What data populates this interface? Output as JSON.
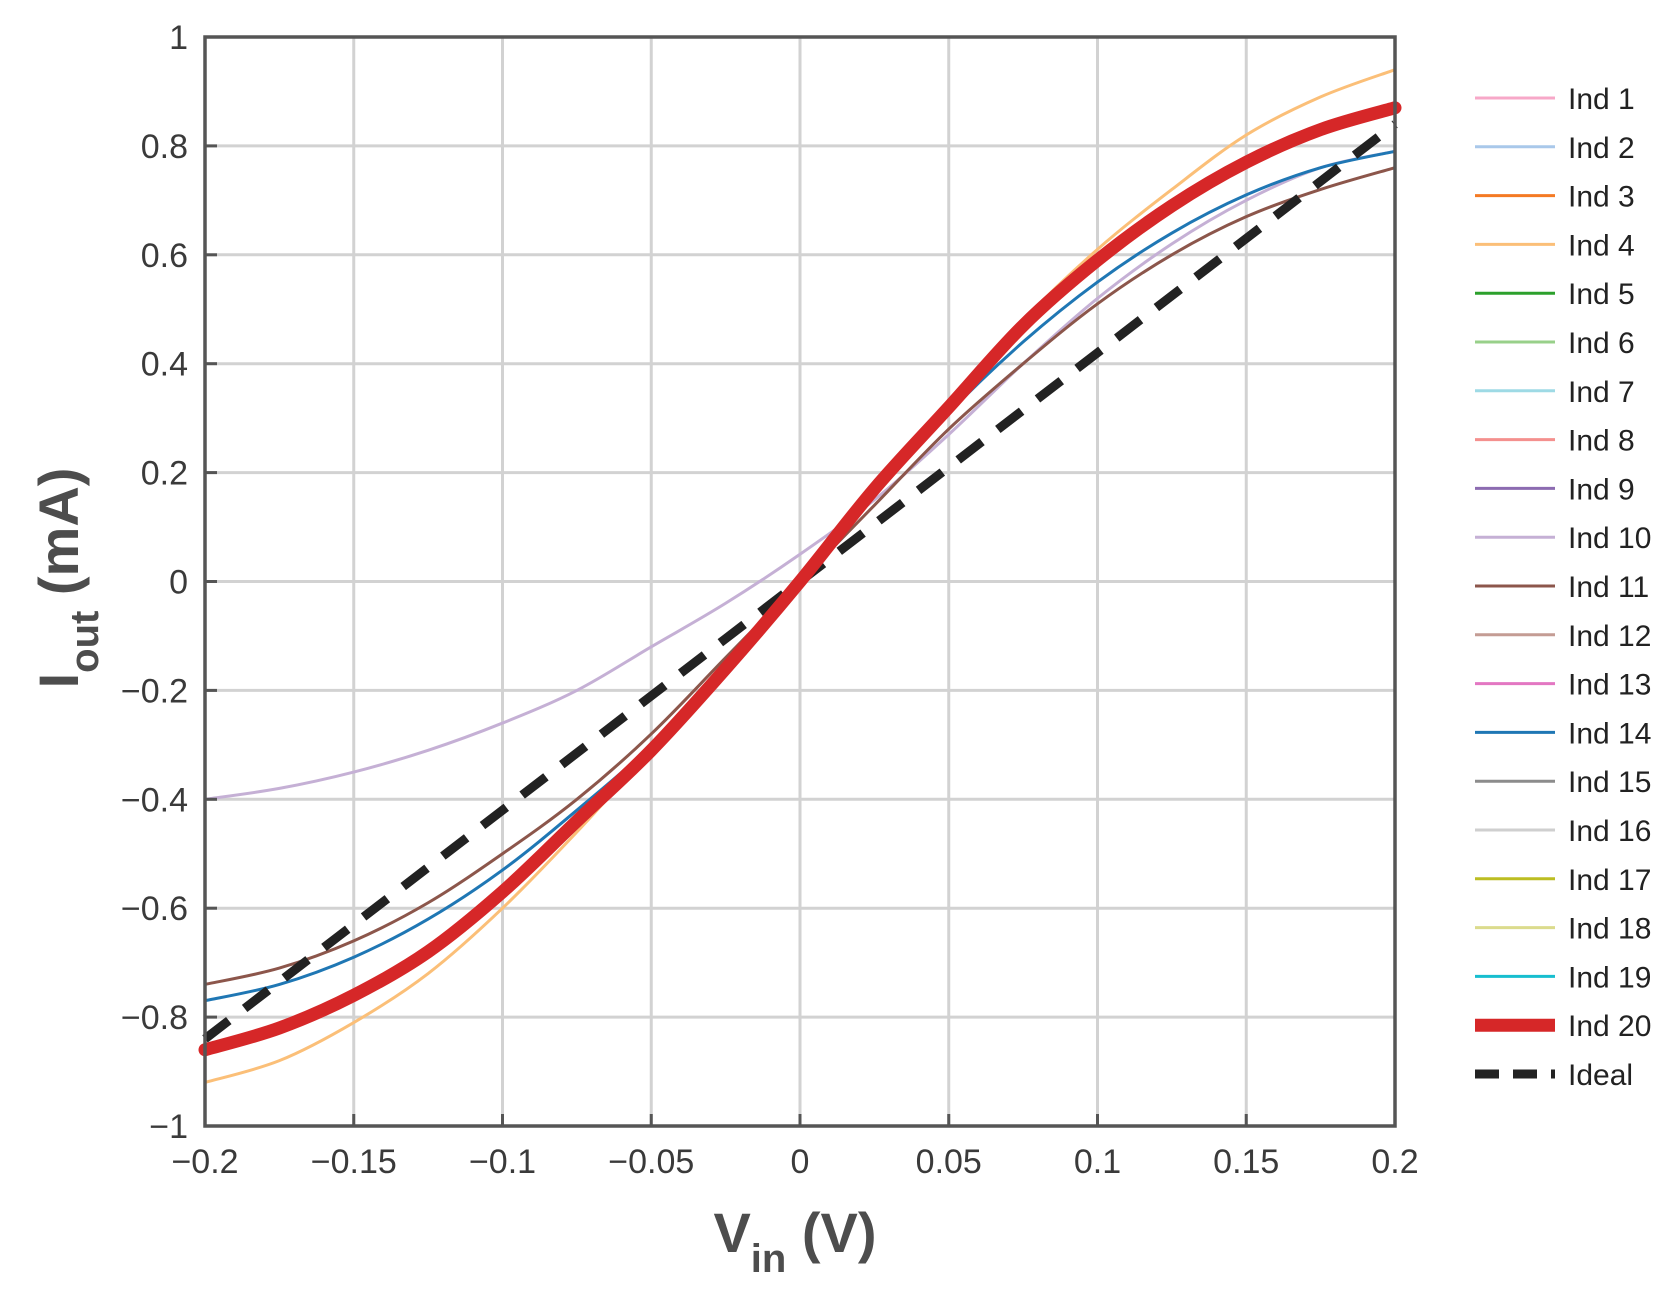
{
  "chart_data": {
    "type": "line",
    "xlabel": {
      "main": "V",
      "sub": "in",
      "rest": " (V)"
    },
    "ylabel": {
      "main": "I",
      "sub": "out",
      "rest": " (mA)"
    },
    "xlim": [
      -0.2,
      0.2
    ],
    "ylim": [
      -1,
      1
    ],
    "grid": true,
    "legend_position": "right-outside",
    "x_ticks": [
      {
        "value": -0.2,
        "label": "−0.2"
      },
      {
        "value": -0.15,
        "label": "−0.15"
      },
      {
        "value": -0.1,
        "label": "−0.1"
      },
      {
        "value": -0.05,
        "label": "−0.05"
      },
      {
        "value": 0,
        "label": "0"
      },
      {
        "value": 0.05,
        "label": "0.05"
      },
      {
        "value": 0.1,
        "label": "0.1"
      },
      {
        "value": 0.15,
        "label": "0.15"
      },
      {
        "value": 0.2,
        "label": "0.2"
      }
    ],
    "y_ticks": [
      {
        "value": 1,
        "label": "1"
      },
      {
        "value": 0.8,
        "label": "0.8"
      },
      {
        "value": 0.6,
        "label": "0.6"
      },
      {
        "value": 0.4,
        "label": "0.4"
      },
      {
        "value": 0.2,
        "label": "0.2"
      },
      {
        "value": 0,
        "label": "0"
      },
      {
        "value": -0.2,
        "label": "−0.2"
      },
      {
        "value": -0.4,
        "label": "−0.4"
      },
      {
        "value": -0.6,
        "label": "−0.6"
      },
      {
        "value": -0.8,
        "label": "−0.8"
      },
      {
        "value": -1,
        "label": "−1"
      }
    ],
    "series": [
      {
        "name": "Ind 1",
        "color": "#f7a8c8",
        "width": 3,
        "dash": false,
        "x": [],
        "y": []
      },
      {
        "name": "Ind 2",
        "color": "#a9c8ea",
        "width": 3,
        "dash": false,
        "x": [],
        "y": []
      },
      {
        "name": "Ind 3",
        "color": "#f47a24",
        "width": 3,
        "dash": false,
        "x": [],
        "y": []
      },
      {
        "name": "Ind 4",
        "color": "#fbbf78",
        "width": 3,
        "dash": false,
        "x": [
          -0.2,
          -0.175,
          -0.15,
          -0.125,
          -0.1,
          -0.075,
          -0.05,
          -0.025,
          0,
          0.025,
          0.05,
          0.075,
          0.1,
          0.125,
          0.15,
          0.175,
          0.2
        ],
        "y": [
          -0.92,
          -0.88,
          -0.81,
          -0.72,
          -0.6,
          -0.46,
          -0.31,
          -0.16,
          0.0,
          0.17,
          0.33,
          0.48,
          0.61,
          0.72,
          0.82,
          0.89,
          0.94
        ]
      },
      {
        "name": "Ind 5",
        "color": "#2ca02c",
        "width": 3,
        "dash": false,
        "x": [],
        "y": []
      },
      {
        "name": "Ind 6",
        "color": "#98d08a",
        "width": 3,
        "dash": false,
        "x": [],
        "y": []
      },
      {
        "name": "Ind 7",
        "color": "#9edae5",
        "width": 3,
        "dash": false,
        "x": [],
        "y": []
      },
      {
        "name": "Ind 8",
        "color": "#f4908e",
        "width": 3,
        "dash": false,
        "x": [],
        "y": []
      },
      {
        "name": "Ind 9",
        "color": "#8c6bb1",
        "width": 3,
        "dash": false,
        "x": [],
        "y": []
      },
      {
        "name": "Ind 10",
        "color": "#c5b0d5",
        "width": 3,
        "dash": false,
        "x": [
          -0.2,
          -0.175,
          -0.15,
          -0.125,
          -0.1,
          -0.075,
          -0.05,
          -0.025,
          0,
          0.025,
          0.05,
          0.075,
          0.1,
          0.125,
          0.15,
          0.175,
          0.2
        ],
        "y": [
          -0.4,
          -0.38,
          -0.35,
          -0.31,
          -0.26,
          -0.2,
          -0.12,
          -0.04,
          0.05,
          0.15,
          0.27,
          0.4,
          0.52,
          0.62,
          0.7,
          0.76,
          0.79
        ]
      },
      {
        "name": "Ind 11",
        "color": "#8c564b",
        "width": 3,
        "dash": false,
        "x": [
          -0.2,
          -0.175,
          -0.15,
          -0.125,
          -0.1,
          -0.075,
          -0.05,
          -0.025,
          0,
          0.025,
          0.05,
          0.075,
          0.1,
          0.125,
          0.15,
          0.175,
          0.2
        ],
        "y": [
          -0.74,
          -0.71,
          -0.66,
          -0.59,
          -0.5,
          -0.4,
          -0.28,
          -0.14,
          0.0,
          0.14,
          0.28,
          0.4,
          0.51,
          0.6,
          0.67,
          0.72,
          0.76
        ]
      },
      {
        "name": "Ind 12",
        "color": "#c49c94",
        "width": 3,
        "dash": false,
        "x": [],
        "y": []
      },
      {
        "name": "Ind 13",
        "color": "#e377c2",
        "width": 3,
        "dash": false,
        "x": [],
        "y": []
      },
      {
        "name": "Ind 14",
        "color": "#1f77b4",
        "width": 3,
        "dash": false,
        "x": [
          -0.2,
          -0.175,
          -0.15,
          -0.125,
          -0.1,
          -0.075,
          -0.05,
          -0.025,
          0,
          0.025,
          0.05,
          0.075,
          0.1,
          0.125,
          0.15,
          0.175,
          0.2
        ],
        "y": [
          -0.77,
          -0.74,
          -0.69,
          -0.62,
          -0.53,
          -0.42,
          -0.3,
          -0.15,
          0.0,
          0.16,
          0.31,
          0.44,
          0.55,
          0.64,
          0.71,
          0.76,
          0.79
        ]
      },
      {
        "name": "Ind 15",
        "color": "#8c8c8c",
        "width": 3,
        "dash": false,
        "x": [],
        "y": []
      },
      {
        "name": "Ind 16",
        "color": "#cfcfcf",
        "width": 3,
        "dash": false,
        "x": [],
        "y": []
      },
      {
        "name": "Ind 17",
        "color": "#bcbd22",
        "width": 3,
        "dash": false,
        "x": [],
        "y": []
      },
      {
        "name": "Ind 18",
        "color": "#dbdb8d",
        "width": 3,
        "dash": false,
        "x": [],
        "y": []
      },
      {
        "name": "Ind 19",
        "color": "#17becf",
        "width": 3,
        "dash": false,
        "x": [],
        "y": []
      },
      {
        "name": "Ind 20",
        "color": "#d62728",
        "width": 13,
        "dash": false,
        "x": [
          -0.2,
          -0.175,
          -0.15,
          -0.125,
          -0.1,
          -0.075,
          -0.05,
          -0.025,
          0,
          0.025,
          0.05,
          0.075,
          0.1,
          0.125,
          0.15,
          0.175,
          0.2
        ],
        "y": [
          -0.86,
          -0.82,
          -0.76,
          -0.68,
          -0.57,
          -0.44,
          -0.31,
          -0.16,
          0.0,
          0.17,
          0.32,
          0.47,
          0.59,
          0.69,
          0.77,
          0.83,
          0.87
        ]
      },
      {
        "name": "Ideal",
        "color": "#222222",
        "width": 9,
        "dash": true,
        "x": [
          -0.2,
          0.2
        ],
        "y": [
          -0.84,
          0.84
        ]
      }
    ]
  }
}
